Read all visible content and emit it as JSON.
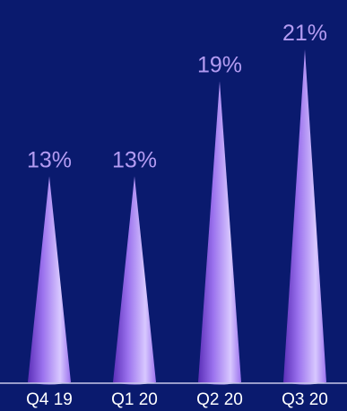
{
  "chart_data": {
    "type": "bar",
    "bar_shape": "cone",
    "categories": [
      "Q4 19",
      "Q1 20",
      "Q2 20",
      "Q3 20"
    ],
    "values": [
      13,
      13,
      19,
      21
    ],
    "data_labels": [
      "13%",
      "13%",
      "19%",
      "21%"
    ],
    "ylim": [
      0,
      21
    ],
    "grid": false,
    "legend": "none",
    "colors": {
      "background": "#0a1a6e",
      "bar_light": "#d8c8ff",
      "bar_mid": "#9b72ee",
      "bar_dark": "#5b2fb8",
      "label": "#b49cf2",
      "tick": "#ffffff",
      "axis": "#c8c8e8"
    }
  }
}
